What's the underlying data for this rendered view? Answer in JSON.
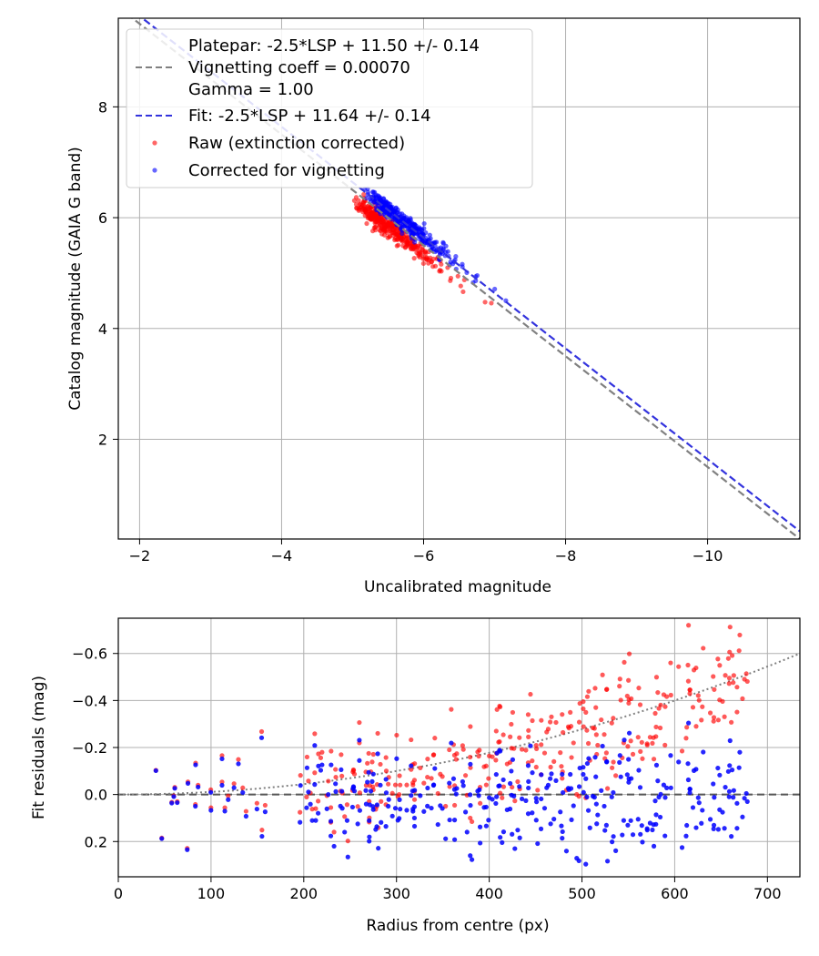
{
  "chart_data": [
    {
      "type": "scatter",
      "xlabel": "Uncalibrated magnitude",
      "ylabel": "Catalog magnitude (GAIA G band)",
      "xlim": [
        -1.7,
        -11.3
      ],
      "ylim": [
        9.6,
        0.2
      ],
      "grid": true,
      "x_ticks": [
        -2,
        -4,
        -6,
        -8,
        -10
      ],
      "x_tick_labels": [
        "−2",
        "−4",
        "−6",
        "−8",
        "−10"
      ],
      "y_ticks": [
        2,
        4,
        6,
        8
      ],
      "y_tick_labels": [
        "2",
        "4",
        "6",
        "8"
      ],
      "lines": [
        {
          "name": "Platepar",
          "color": "#808080",
          "dash": "dashed",
          "slope": 1,
          "intercept": 11.5
        },
        {
          "name": "Fit",
          "color": "#3333dd",
          "dash": "dashed",
          "slope": 1,
          "intercept": 11.64
        }
      ],
      "series": [
        {
          "name": "Raw (extinction corrected)",
          "color": "#ff0000",
          "n_points": 330,
          "x_range": [
            -4.8,
            -7.7
          ],
          "offset_from_platepar": -0.15,
          "scatter": 0.09
        },
        {
          "name": "Corrected for vignetting",
          "color": "#0000ff",
          "n_points": 330,
          "x_range": [
            -5.0,
            -8.05
          ],
          "offset_from_platepar": 0.14,
          "scatter": 0.08
        }
      ],
      "legend": {
        "position": "top-left",
        "entries": [
          {
            "label_lines": [
              "Platepar: -2.5*LSP + 11.50 +/- 0.14",
              "Vignetting coeff = 0.00070",
              "Gamma = 1.00"
            ],
            "marker": "line",
            "color": "#808080"
          },
          {
            "label_lines": [
              "Fit: -2.5*LSP + 11.64 +/- 0.14"
            ],
            "marker": "line",
            "color": "#3333dd"
          },
          {
            "label_lines": [
              "Raw (extinction corrected)"
            ],
            "marker": "dot",
            "color": "#ff0000"
          },
          {
            "label_lines": [
              "Corrected for vignetting"
            ],
            "marker": "dot",
            "color": "#0000ff"
          }
        ]
      }
    },
    {
      "type": "scatter",
      "xlabel": "Radius from centre (px)",
      "ylabel": "Fit residuals (mag)",
      "xlim": [
        0,
        735
      ],
      "ylim": [
        -0.75,
        0.35
      ],
      "grid": true,
      "x_ticks": [
        0,
        100,
        200,
        300,
        400,
        500,
        600,
        700
      ],
      "x_tick_labels": [
        "0",
        "100",
        "200",
        "300",
        "400",
        "500",
        "600",
        "700"
      ],
      "y_ticks": [
        0.2,
        0.0,
        -0.2,
        -0.4,
        -0.6
      ],
      "y_tick_labels": [
        "0.2",
        "0.0",
        "−0.2",
        "−0.4",
        "−0.6"
      ],
      "zero_line": {
        "y": 0,
        "color": "#555555",
        "dash": "dashed"
      },
      "vignetting_curve": {
        "coeff": 0.0007,
        "color": "#808080",
        "dash": "dotted"
      },
      "series": [
        {
          "name": "Raw",
          "color": "#ff0000",
          "n_points": 330,
          "x_range": [
            40,
            680
          ],
          "residual": "base - vignetting_loss"
        },
        {
          "name": "Corrected",
          "color": "#0000ff",
          "n_points": 330,
          "x_range": [
            40,
            680
          ],
          "residual": "base"
        }
      ]
    }
  ]
}
